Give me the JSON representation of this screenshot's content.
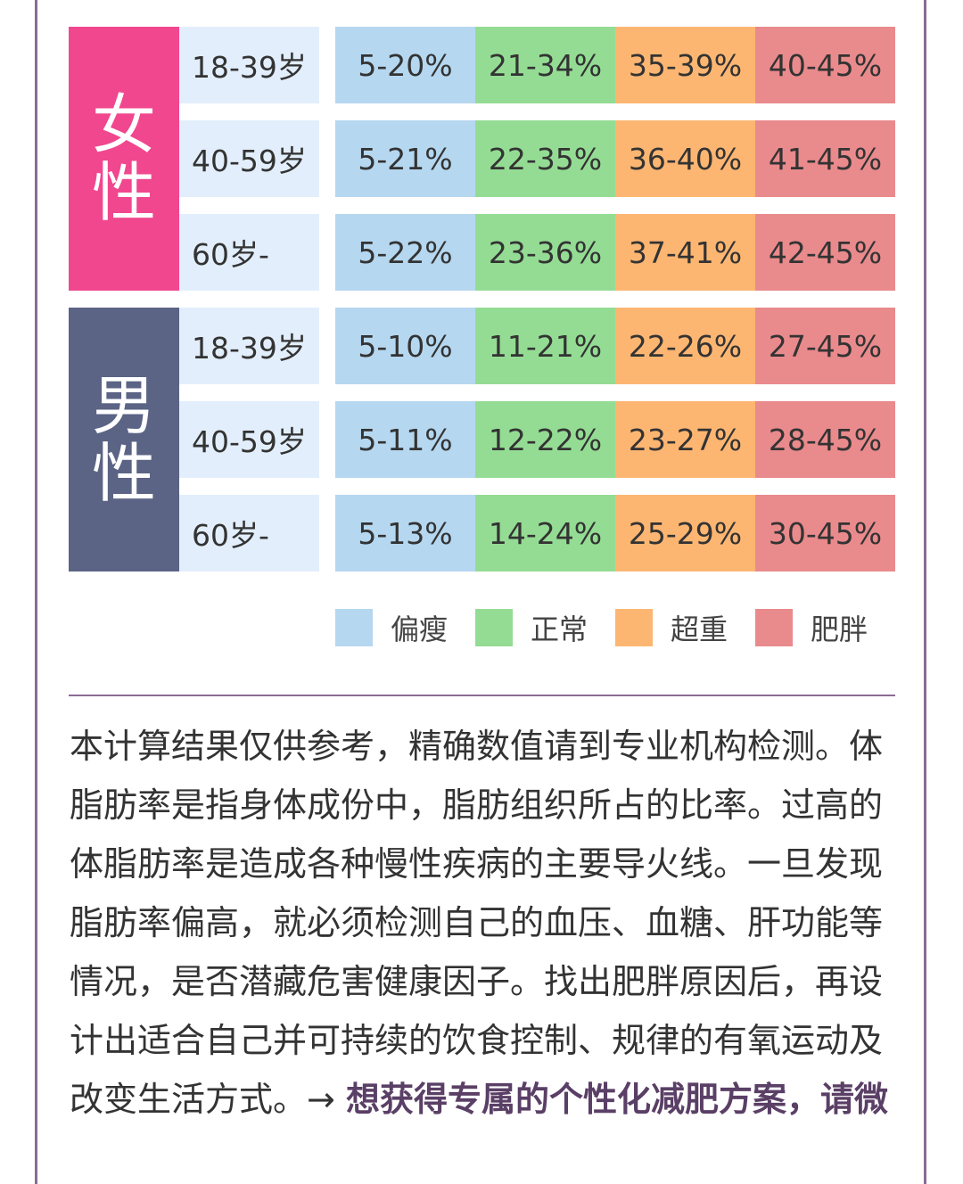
{
  "table": {
    "groups": [
      {
        "label": "女性",
        "rows": [
          {
            "age": "18-39岁",
            "thin": "5-20%",
            "normal": "21-34%",
            "over": "35-39%",
            "obese": "40-45%"
          },
          {
            "age": "40-59岁",
            "thin": "5-21%",
            "normal": "22-35%",
            "over": "36-40%",
            "obese": "41-45%"
          },
          {
            "age": "60岁-",
            "thin": "5-22%",
            "normal": "23-36%",
            "over": "37-41%",
            "obese": "42-45%"
          }
        ]
      },
      {
        "label": "男性",
        "rows": [
          {
            "age": "18-39岁",
            "thin": "5-10%",
            "normal": "11-21%",
            "over": "22-26%",
            "obese": "27-45%"
          },
          {
            "age": "40-59岁",
            "thin": "5-11%",
            "normal": "12-22%",
            "over": "23-27%",
            "obese": "28-45%"
          },
          {
            "age": "60岁-",
            "thin": "5-13%",
            "normal": "14-24%",
            "over": "25-29%",
            "obese": "30-45%"
          }
        ]
      }
    ]
  },
  "legend": [
    {
      "label": "偏瘦",
      "color": "#b5d7f0"
    },
    {
      "label": "正常",
      "color": "#94dc94"
    },
    {
      "label": "超重",
      "color": "#fdb672"
    },
    {
      "label": "肥胖",
      "color": "#e98a8c"
    }
  ],
  "colors": {
    "female": "#f0478f",
    "male": "#5b6485",
    "frame": "#8a6b93"
  },
  "note": {
    "text": "本计算结果仅供参考，精确数值请到专业机构检测。体脂肪率是指身体成份中，脂肪组织所占的比率。过高的体脂肪率是造成各种慢性疾病的主要导火线。一旦发现脂肪率偏高，就必须检测自己的血压、血糖、肝功能等情况，是否潜藏危害健康因子。找出肥胖原因后，再设计出适合自己并可持续的饮食控制、规律的有氧运动及改变生活方式。",
    "arrow": "→",
    "highlight": "想获得专属的个性化减肥方案，请微"
  }
}
